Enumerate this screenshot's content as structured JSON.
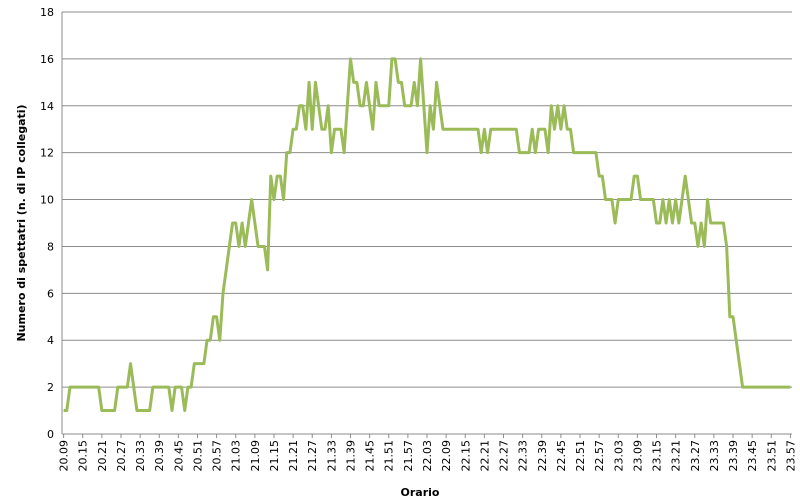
{
  "chart_data": {
    "type": "line",
    "x_label": "Orario",
    "y_label": "Numero di spettatri (n. di IP collegati)",
    "categories": [
      "20.09",
      null,
      null,
      null,
      null,
      null,
      "20.15",
      null,
      null,
      null,
      null,
      null,
      "20.21",
      null,
      null,
      null,
      null,
      null,
      "20.27",
      null,
      null,
      null,
      null,
      null,
      "20.33",
      null,
      null,
      null,
      null,
      null,
      "20.39",
      null,
      null,
      null,
      null,
      null,
      "20.45",
      null,
      null,
      null,
      null,
      null,
      "20.51",
      null,
      null,
      null,
      null,
      null,
      "20.57",
      null,
      null,
      null,
      null,
      null,
      "21.03",
      null,
      null,
      null,
      null,
      null,
      "21.09",
      null,
      null,
      null,
      null,
      null,
      "21.15",
      null,
      null,
      null,
      null,
      null,
      "21.21",
      null,
      null,
      null,
      null,
      null,
      "21.27",
      null,
      null,
      null,
      null,
      null,
      "21.33",
      null,
      null,
      null,
      null,
      null,
      "21.39",
      null,
      null,
      null,
      null,
      null,
      "21.45",
      null,
      null,
      null,
      null,
      null,
      "21.51",
      null,
      null,
      null,
      null,
      null,
      "21.57",
      null,
      null,
      null,
      null,
      null,
      "22.03",
      null,
      null,
      null,
      null,
      null,
      "22.09",
      null,
      null,
      null,
      null,
      null,
      "22.15",
      null,
      null,
      null,
      null,
      null,
      "22.21",
      null,
      null,
      null,
      null,
      null,
      "22.27",
      null,
      null,
      null,
      null,
      null,
      "22.33",
      null,
      null,
      null,
      null,
      null,
      "22.39",
      null,
      null,
      null,
      null,
      null,
      "22.45",
      null,
      null,
      null,
      null,
      null,
      "22.51",
      null,
      null,
      null,
      null,
      null,
      "22.57",
      null,
      null,
      null,
      null,
      null,
      "23.03",
      null,
      null,
      null,
      null,
      null,
      "23.09",
      null,
      null,
      null,
      null,
      null,
      "23.15",
      null,
      null,
      null,
      null,
      null,
      "23.21",
      null,
      null,
      null,
      null,
      null,
      "23.27",
      null,
      null,
      null,
      null,
      null,
      "23.33",
      null,
      null,
      null,
      null,
      null,
      "23.39",
      null,
      null,
      null,
      null,
      null,
      "23.45",
      null,
      null,
      null,
      null,
      null,
      "23.51",
      null,
      null,
      null,
      null,
      null,
      "23.57"
    ],
    "series": [
      {
        "color": "#9bbb59",
        "values": [
          1,
          1,
          2,
          2,
          2,
          2,
          2,
          2,
          2,
          2,
          2,
          2,
          1,
          1,
          1,
          1,
          1,
          2,
          2,
          2,
          2,
          3,
          2,
          1,
          1,
          1,
          1,
          1,
          2,
          2,
          2,
          2,
          2,
          2,
          1,
          2,
          2,
          2,
          1,
          2,
          2,
          3,
          3,
          3,
          3,
          4,
          4,
          5,
          5,
          4,
          6,
          7,
          8,
          9,
          9,
          8,
          9,
          8,
          9,
          10,
          9,
          8,
          8,
          8,
          7,
          11,
          10,
          11,
          11,
          10,
          12,
          12,
          13,
          13,
          14,
          14,
          13,
          15,
          13,
          15,
          14,
          13,
          13,
          14,
          12,
          13,
          13,
          13,
          12,
          14,
          16,
          15,
          15,
          14,
          14,
          15,
          14,
          13,
          15,
          14,
          14,
          14,
          14,
          16,
          16,
          15,
          15,
          14,
          14,
          14,
          15,
          14,
          16,
          14,
          12,
          14,
          13,
          15,
          14,
          13,
          13,
          13,
          13,
          13,
          13,
          13,
          13,
          13,
          13,
          13,
          13,
          12,
          13,
          12,
          13,
          13,
          13,
          13,
          13,
          13,
          13,
          13,
          13,
          12,
          12,
          12,
          12,
          13,
          12,
          13,
          13,
          13,
          12,
          14,
          13,
          14,
          13,
          14,
          13,
          13,
          12,
          12,
          12,
          12,
          12,
          12,
          12,
          12,
          11,
          11,
          10,
          10,
          10,
          9,
          10,
          10,
          10,
          10,
          10,
          11,
          11,
          10,
          10,
          10,
          10,
          10,
          9,
          9,
          10,
          9,
          10,
          9,
          10,
          9,
          10,
          11,
          10,
          9,
          9,
          8,
          9,
          8,
          10,
          9,
          9,
          9,
          9,
          9,
          8,
          5,
          5,
          4,
          3,
          2,
          2,
          2,
          2,
          2,
          2,
          2,
          2,
          2,
          2,
          2,
          2,
          2,
          2,
          2,
          2
        ]
      }
    ],
    "ylim": [
      0,
      18
    ],
    "yticks": [
      0,
      2,
      4,
      6,
      8,
      10,
      12,
      14,
      16,
      18
    ],
    "grid": true
  }
}
